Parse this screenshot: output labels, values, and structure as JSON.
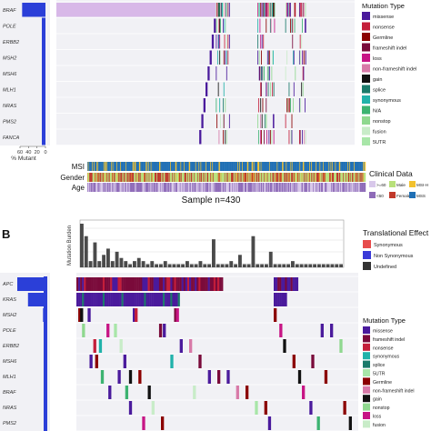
{
  "panel_b_label": "B",
  "colors": {
    "missense": "#4a1a9c",
    "nonsense": "#c41e3a",
    "germline": "#8b0000",
    "frameshift_indel": "#7a0a3a",
    "loss": "#c71585",
    "non_frameshift_indel": "#d87aa8",
    "gain": "#111111",
    "splice": "#1a7a6a",
    "synonymous": "#20b2aa",
    "na": "#3cb371",
    "nonstop": "#8fd88f",
    "fusion": "#c8ecc8",
    "utr5": "#a8e6a8",
    "bar": "#2b3fd8",
    "tmb_bar": "#4a4a4a",
    "msi_h": "#f2c12e",
    "mss": "#1f6fb4",
    "male": "#b8e07a",
    "female": "#c0392b",
    "age_old": "#d8c8ea",
    "age_young": "#8e6bb8"
  },
  "panel_a": {
    "genes": [
      "BRAF",
      "POLE",
      "ERBB2",
      "MSH2",
      "MSH6",
      "MLH1",
      "NRAS",
      "PMS2",
      "FANCA"
    ],
    "pct_ticks": [
      "60",
      "40",
      "20",
      "0"
    ],
    "pct_axis_label": "% Mutant",
    "legend_title": "Mutation Type",
    "legend_items": [
      {
        "label": "missense",
        "color": "#4a1a9c"
      },
      {
        "label": "nonsense",
        "color": "#c41e3a"
      },
      {
        "label": "Germline",
        "color": "#8b0000"
      },
      {
        "label": "frameshift indel",
        "color": "#7a0a3a"
      },
      {
        "label": "loss",
        "color": "#c71585"
      },
      {
        "label": "non-frameshift indel",
        "color": "#d87aa8"
      },
      {
        "label": "gain",
        "color": "#111111"
      },
      {
        "label": "splice",
        "color": "#1a7a6a"
      },
      {
        "label": "synonymous",
        "color": "#20b2aa"
      },
      {
        "label": "N/A",
        "color": "#3cb371"
      },
      {
        "label": "nonstop",
        "color": "#8fd88f"
      },
      {
        "label": "fusion",
        "color": "#c8ecc8"
      },
      {
        "label": "5UTR",
        "color": "#a8e6a8"
      }
    ],
    "clinical_rows": [
      "MSI",
      "Gender",
      "Age"
    ],
    "sample_label": "Sample n=430",
    "clinical_title": "Clinical Data",
    "clinical_legend": [
      {
        "label": ">=60",
        "color": "#d8c8ea"
      },
      {
        "label": "Male",
        "color": "#b8e07a"
      },
      {
        "label": "MSI-H",
        "color": "#f2c12e"
      },
      {
        "label": "<60",
        "color": "#8e6bb8"
      },
      {
        "label": "Female",
        "color": "#c0392b"
      },
      {
        "label": "MSS",
        "color": "#1f6fb4"
      }
    ]
  },
  "panel_b": {
    "genes": [
      "APC",
      "KRAS",
      "MSH2",
      "POLE",
      "ERBB2",
      "MSH6",
      "MLH1",
      "BRAF",
      "NRAS",
      "PMS2"
    ],
    "tmb_axis_label": "Mutation Burden",
    "translational_title": "Translational Effect",
    "translational_items": [
      {
        "label": "Synonymous",
        "color": "#e74c4c"
      },
      {
        "label": "Non Synonymous",
        "color": "#3a3ad8"
      },
      {
        "label": "Undefined",
        "color": "#333333"
      }
    ],
    "legend_title": "Mutation Type",
    "legend_items": [
      {
        "label": "missense",
        "color": "#4a1a9c"
      },
      {
        "label": "frameshift indel",
        "color": "#7a0a3a"
      },
      {
        "label": "nonsense",
        "color": "#c41e3a"
      },
      {
        "label": "synonymous",
        "color": "#20b2aa"
      },
      {
        "label": "splice",
        "color": "#1a7a6a"
      },
      {
        "label": "5UTR",
        "color": "#a8e6a8"
      },
      {
        "label": "Germline",
        "color": "#8b0000"
      },
      {
        "label": "non-frameshift indel",
        "color": "#d87aa8"
      },
      {
        "label": "gain",
        "color": "#111111"
      },
      {
        "label": "nonstop",
        "color": "#8fd88f"
      },
      {
        "label": "loss",
        "color": "#c71585"
      },
      {
        "label": "fusion",
        "color": "#c8ecc8"
      }
    ]
  },
  "chart_data": [
    {
      "type": "heatmap",
      "panel": "A",
      "rows": [
        "BRAF",
        "POLE",
        "ERBB2",
        "MSH2",
        "MSH6",
        "MLH1",
        "NRAS",
        "PMS2",
        "FANCA"
      ],
      "samples": 430,
      "row_bar": {
        "xlabel": "% Mutant",
        "xticks": [
          60,
          40,
          20,
          0
        ],
        "values": [
          55,
          3,
          4,
          3,
          2,
          2,
          2,
          2,
          2
        ]
      },
      "clinical_tracks": [
        "MSI",
        "Gender",
        "Age"
      ],
      "legend_placement": "right"
    },
    {
      "type": "heatmap",
      "panel": "B",
      "rows": [
        "APC",
        "KRAS",
        "MSH2",
        "POLE",
        "ERBB2",
        "MSH6",
        "MLH1",
        "BRAF",
        "NRAS",
        "PMS2"
      ],
      "row_bar": {
        "values": [
          70,
          45,
          10,
          8,
          7,
          6,
          6,
          5,
          4,
          3
        ]
      },
      "tmb_bars": {
        "ylabel": "Mutation Burden",
        "values": [
          14,
          10,
          2,
          8,
          2,
          4,
          6,
          2,
          5,
          3,
          2,
          1,
          2,
          3,
          2,
          1,
          2,
          1,
          1,
          2,
          1,
          1,
          1,
          1,
          2,
          1,
          1,
          2,
          1,
          1,
          9,
          1,
          1,
          1,
          2,
          1,
          4,
          1,
          1,
          10,
          1,
          1,
          1,
          5,
          1,
          1,
          1,
          1,
          2,
          1,
          1,
          1,
          1,
          1,
          1,
          1,
          1,
          1,
          1,
          1
        ]
      },
      "legend_placement": "right"
    }
  ]
}
